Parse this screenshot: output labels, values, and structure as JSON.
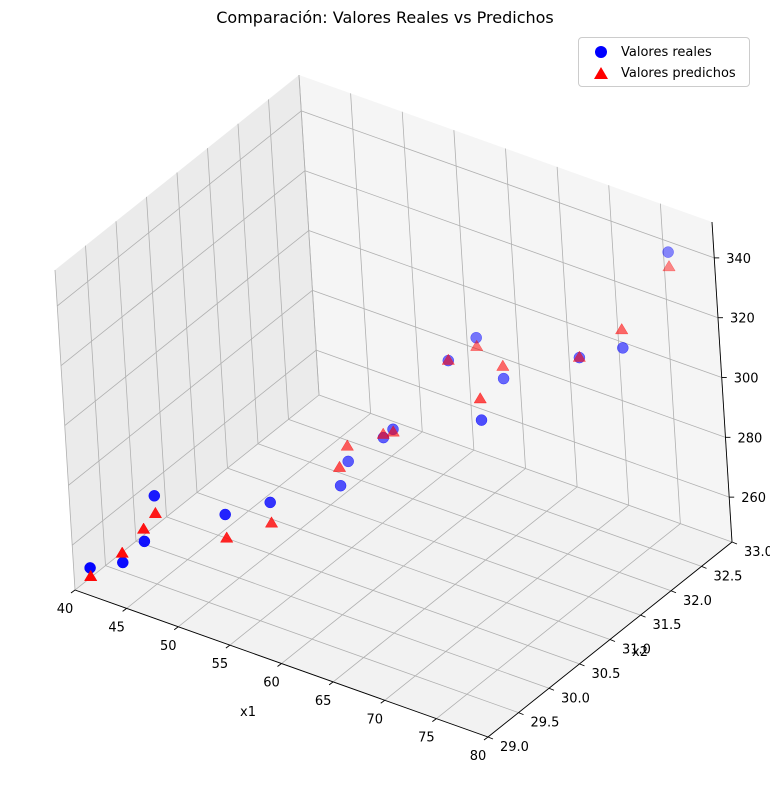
{
  "chart_data": {
    "type": "scatter",
    "title": "Comparación: Valores Reales vs Predichos",
    "xlabel": "x1",
    "ylabel": "x2",
    "zlabel": "",
    "xlim": [
      40,
      80
    ],
    "ylim": [
      29,
      33
    ],
    "zlim": [
      245,
      352
    ],
    "x_ticks": [
      "40",
      "45",
      "50",
      "55",
      "60",
      "65",
      "70",
      "75",
      "80"
    ],
    "y_ticks": [
      "29.0",
      "29.5",
      "30.0",
      "30.5",
      "31.0",
      "31.5",
      "32.0",
      "32.5",
      "33.0"
    ],
    "z_ticks": [
      "260",
      "280",
      "300",
      "320",
      "340"
    ],
    "grid": true,
    "legend_position": "top-right",
    "series": [
      {
        "name": "Valores reales",
        "marker": "circle",
        "color": "#0000ff",
        "points": [
          {
            "x": 41,
            "y": 29.1,
            "z": 252
          },
          {
            "x": 43,
            "y": 29.3,
            "z": 253
          },
          {
            "x": 44,
            "y": 29.5,
            "z": 258
          },
          {
            "x": 44,
            "y": 29.7,
            "z": 270
          },
          {
            "x": 49,
            "y": 30.0,
            "z": 265
          },
          {
            "x": 51,
            "y": 30.4,
            "z": 265
          },
          {
            "x": 53,
            "y": 31.2,
            "z": 260
          },
          {
            "x": 52,
            "y": 31.5,
            "z": 262
          },
          {
            "x": 55,
            "y": 31.6,
            "z": 272
          },
          {
            "x": 56,
            "y": 31.6,
            "z": 276
          },
          {
            "x": 60,
            "y": 31.9,
            "z": 299
          },
          {
            "x": 61,
            "y": 32.2,
            "z": 303
          },
          {
            "x": 68,
            "y": 31.1,
            "z": 302
          },
          {
            "x": 66,
            "y": 31.8,
            "z": 302
          },
          {
            "x": 73,
            "y": 31.9,
            "z": 316
          },
          {
            "x": 78,
            "y": 31.8,
            "z": 327
          },
          {
            "x": 78,
            "y": 32.6,
            "z": 346
          }
        ]
      },
      {
        "name": "Valores predichos",
        "marker": "triangle",
        "color": "#ff0000",
        "points": [
          {
            "x": 41,
            "y": 29.1,
            "z": 249
          },
          {
            "x": 43,
            "y": 29.3,
            "z": 256
          },
          {
            "x": 44,
            "y": 29.5,
            "z": 262
          },
          {
            "x": 44,
            "y": 29.7,
            "z": 264
          },
          {
            "x": 49,
            "y": 30.0,
            "z": 257
          },
          {
            "x": 51,
            "y": 30.4,
            "z": 258
          },
          {
            "x": 53,
            "y": 31.2,
            "z": 266
          },
          {
            "x": 52,
            "y": 31.5,
            "z": 267
          },
          {
            "x": 55,
            "y": 31.6,
            "z": 273
          },
          {
            "x": 56,
            "y": 31.6,
            "z": 275
          },
          {
            "x": 60,
            "y": 31.9,
            "z": 299
          },
          {
            "x": 61,
            "y": 32.2,
            "z": 300
          },
          {
            "x": 68,
            "y": 31.1,
            "z": 309
          },
          {
            "x": 66,
            "y": 31.8,
            "z": 306
          },
          {
            "x": 73,
            "y": 31.9,
            "z": 316
          },
          {
            "x": 78,
            "y": 31.8,
            "z": 333
          },
          {
            "x": 78,
            "y": 32.6,
            "z": 341
          }
        ]
      }
    ]
  }
}
